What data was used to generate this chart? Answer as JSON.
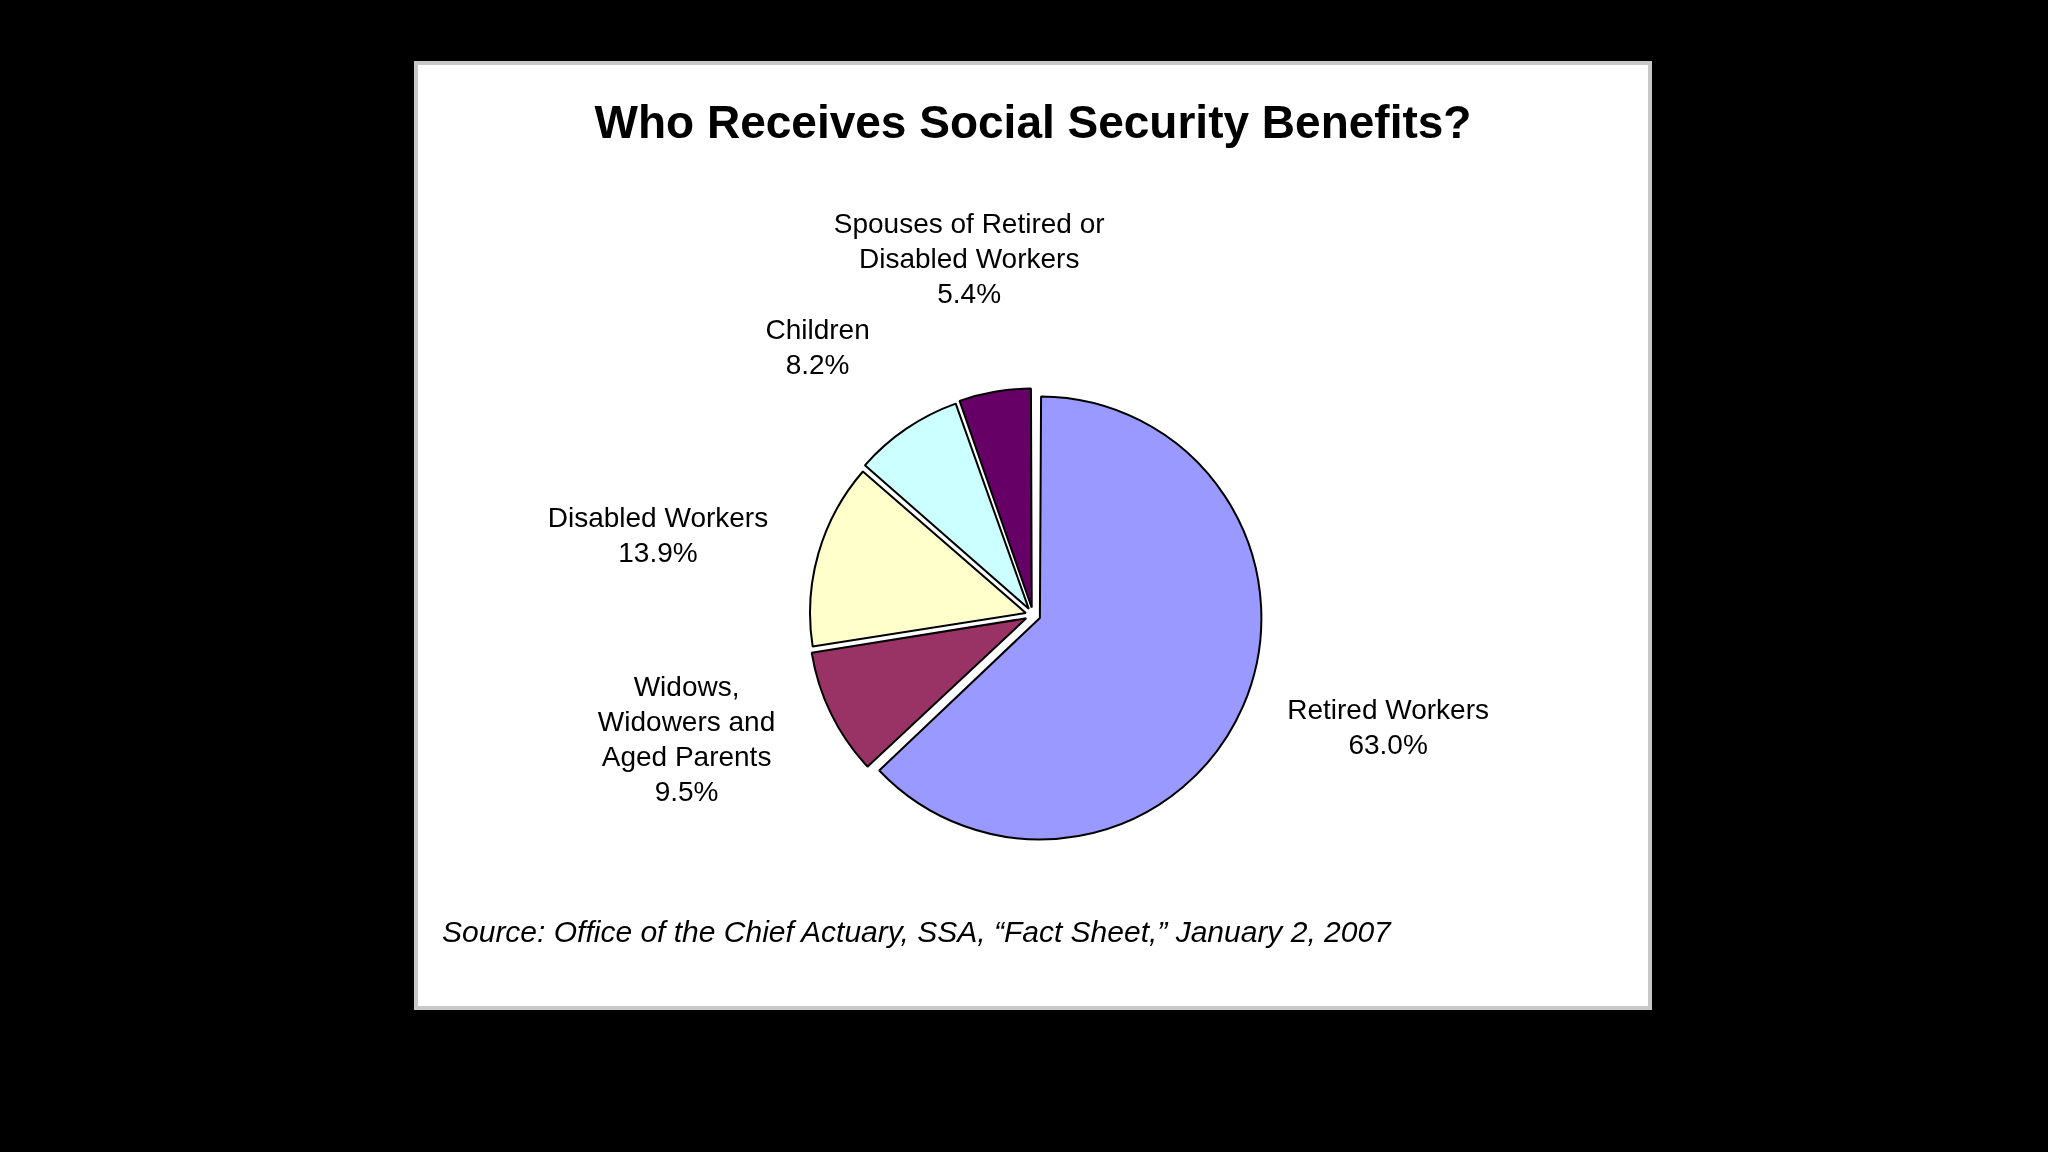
{
  "chart_data": {
    "type": "pie",
    "title": "Who Receives Social Security Benefits?",
    "categories": [
      "Retired Workers",
      "Widows, Widowers and Aged Parents",
      "Disabled Workers",
      "Children",
      "Spouses of Retired or Disabled Workers"
    ],
    "values": [
      63.0,
      9.5,
      13.9,
      8.2,
      5.4
    ],
    "value_labels": [
      "63.0%",
      "9.5%",
      "13.9%",
      "8.2%",
      "5.4%"
    ],
    "colors": [
      "#9999ff",
      "#993366",
      "#ffffcc",
      "#ccffff",
      "#660066"
    ],
    "legend": false,
    "annotations": [
      "Source:  Office of the Chief Actuary, SSA, “Fact Sheet,” January 2, 2007"
    ]
  }
}
